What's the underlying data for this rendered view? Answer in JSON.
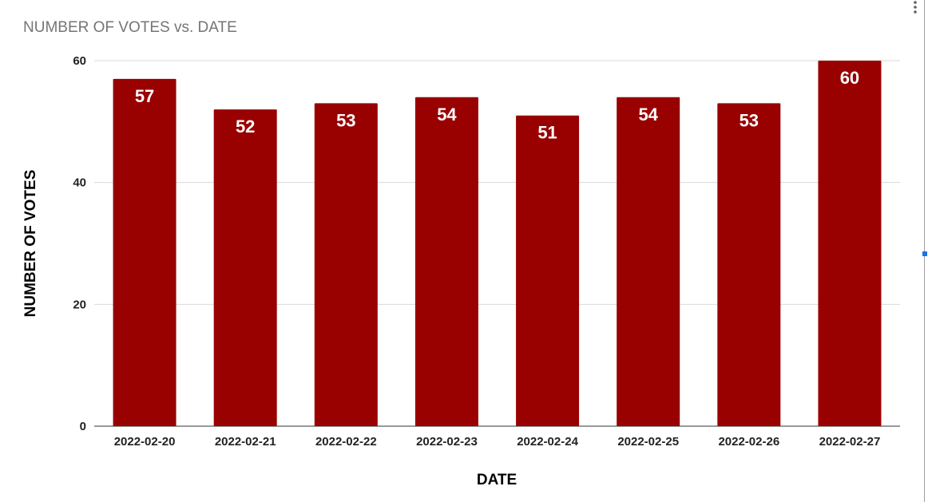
{
  "colors": {
    "bar": "#990000",
    "data_label": "#ffffff",
    "gridline": "#d9d9d9",
    "title": "#757575"
  },
  "icons": {
    "menu": "vertical-ellipsis-icon"
  },
  "chart_data": {
    "type": "bar",
    "title": "NUMBER OF VOTES vs. DATE",
    "xlabel": "DATE",
    "ylabel": "NUMBER OF VOTES",
    "categories": [
      "2022-02-20",
      "2022-02-21",
      "2022-02-22",
      "2022-02-23",
      "2022-02-24",
      "2022-02-25",
      "2022-02-26",
      "2022-02-27"
    ],
    "series": [
      {
        "values": [
          57,
          52,
          53,
          54,
          51,
          54,
          53,
          60
        ]
      }
    ],
    "ylim": [
      0,
      60
    ],
    "yticks": [
      0,
      20,
      40,
      60
    ],
    "data_labels": true,
    "grid": true,
    "legend": "none"
  }
}
